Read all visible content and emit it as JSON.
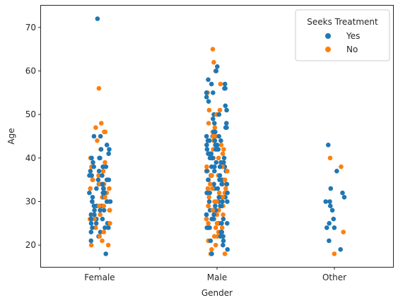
{
  "chart_data": {
    "type": "scatter",
    "subtype": "strip",
    "xlabel": "Gender",
    "ylabel": "Age",
    "categories": [
      "Female",
      "Male",
      "Other"
    ],
    "ylim": [
      15,
      75
    ],
    "yticks": [
      20,
      30,
      40,
      50,
      60,
      70
    ],
    "grid": false,
    "legend": {
      "title": "Seeks Treatment",
      "placement": "top-right",
      "entries": [
        {
          "name": "Yes",
          "color": "#1f77b4"
        },
        {
          "name": "No",
          "color": "#ff7f0e"
        }
      ]
    },
    "series": [
      {
        "name": "Yes",
        "color": "#1f77b4",
        "points": [
          [
            "Female",
            72
          ],
          [
            "Female",
            45
          ],
          [
            "Female",
            45
          ],
          [
            "Female",
            42
          ],
          [
            "Female",
            42
          ],
          [
            "Female",
            41
          ],
          [
            "Female",
            40
          ],
          [
            "Female",
            40
          ],
          [
            "Female",
            39
          ],
          [
            "Female",
            38
          ],
          [
            "Female",
            38
          ],
          [
            "Female",
            37
          ],
          [
            "Female",
            37
          ],
          [
            "Female",
            36
          ],
          [
            "Female",
            36
          ],
          [
            "Female",
            35
          ],
          [
            "Female",
            35
          ],
          [
            "Female",
            34
          ],
          [
            "Female",
            34
          ],
          [
            "Female",
            33
          ],
          [
            "Female",
            33
          ],
          [
            "Female",
            32
          ],
          [
            "Female",
            32
          ],
          [
            "Female",
            31
          ],
          [
            "Female",
            31
          ],
          [
            "Female",
            30
          ],
          [
            "Female",
            30
          ],
          [
            "Female",
            29
          ],
          [
            "Female",
            29
          ],
          [
            "Female",
            28
          ],
          [
            "Female",
            28
          ],
          [
            "Female",
            27
          ],
          [
            "Female",
            27
          ],
          [
            "Female",
            26
          ],
          [
            "Female",
            26
          ],
          [
            "Female",
            25
          ],
          [
            "Female",
            25
          ],
          [
            "Female",
            24
          ],
          [
            "Female",
            24
          ],
          [
            "Female",
            23
          ],
          [
            "Female",
            23
          ],
          [
            "Female",
            22
          ],
          [
            "Female",
            21
          ],
          [
            "Female",
            18
          ],
          [
            "Female",
            43
          ],
          [
            "Female",
            40
          ],
          [
            "Female",
            38
          ],
          [
            "Female",
            36
          ],
          [
            "Female",
            34
          ],
          [
            "Female",
            32
          ],
          [
            "Female",
            30
          ],
          [
            "Female",
            28
          ],
          [
            "Female",
            26
          ],
          [
            "Female",
            24
          ],
          [
            "Female",
            33
          ],
          [
            "Female",
            29
          ],
          [
            "Female",
            27
          ],
          [
            "Female",
            35
          ],
          [
            "Female",
            31
          ],
          [
            "Female",
            25
          ],
          [
            "Male",
            61
          ],
          [
            "Male",
            60
          ],
          [
            "Male",
            60
          ],
          [
            "Male",
            58
          ],
          [
            "Male",
            57
          ],
          [
            "Male",
            57
          ],
          [
            "Male",
            56
          ],
          [
            "Male",
            56
          ],
          [
            "Male",
            55
          ],
          [
            "Male",
            55
          ],
          [
            "Male",
            54
          ],
          [
            "Male",
            53
          ],
          [
            "Male",
            52
          ],
          [
            "Male",
            51
          ],
          [
            "Male",
            50
          ],
          [
            "Male",
            50
          ],
          [
            "Male",
            49
          ],
          [
            "Male",
            48
          ],
          [
            "Male",
            48
          ],
          [
            "Male",
            47
          ],
          [
            "Male",
            47
          ],
          [
            "Male",
            46
          ],
          [
            "Male",
            46
          ],
          [
            "Male",
            45
          ],
          [
            "Male",
            45
          ],
          [
            "Male",
            45
          ],
          [
            "Male",
            44
          ],
          [
            "Male",
            44
          ],
          [
            "Male",
            44
          ],
          [
            "Male",
            43
          ],
          [
            "Male",
            43
          ],
          [
            "Male",
            43
          ],
          [
            "Male",
            42
          ],
          [
            "Male",
            42
          ],
          [
            "Male",
            42
          ],
          [
            "Male",
            41
          ],
          [
            "Male",
            41
          ],
          [
            "Male",
            41
          ],
          [
            "Male",
            40
          ],
          [
            "Male",
            40
          ],
          [
            "Male",
            40
          ],
          [
            "Male",
            39
          ],
          [
            "Male",
            39
          ],
          [
            "Male",
            39
          ],
          [
            "Male",
            38
          ],
          [
            "Male",
            38
          ],
          [
            "Male",
            38
          ],
          [
            "Male",
            37
          ],
          [
            "Male",
            37
          ],
          [
            "Male",
            37
          ],
          [
            "Male",
            36
          ],
          [
            "Male",
            36
          ],
          [
            "Male",
            36
          ],
          [
            "Male",
            35
          ],
          [
            "Male",
            35
          ],
          [
            "Male",
            35
          ],
          [
            "Male",
            34
          ],
          [
            "Male",
            34
          ],
          [
            "Male",
            34
          ],
          [
            "Male",
            33
          ],
          [
            "Male",
            33
          ],
          [
            "Male",
            33
          ],
          [
            "Male",
            32
          ],
          [
            "Male",
            32
          ],
          [
            "Male",
            32
          ],
          [
            "Male",
            31
          ],
          [
            "Male",
            31
          ],
          [
            "Male",
            31
          ],
          [
            "Male",
            30
          ],
          [
            "Male",
            30
          ],
          [
            "Male",
            30
          ],
          [
            "Male",
            29
          ],
          [
            "Male",
            29
          ],
          [
            "Male",
            29
          ],
          [
            "Male",
            28
          ],
          [
            "Male",
            28
          ],
          [
            "Male",
            28
          ],
          [
            "Male",
            27
          ],
          [
            "Male",
            27
          ],
          [
            "Male",
            27
          ],
          [
            "Male",
            26
          ],
          [
            "Male",
            26
          ],
          [
            "Male",
            26
          ],
          [
            "Male",
            25
          ],
          [
            "Male",
            25
          ],
          [
            "Male",
            25
          ],
          [
            "Male",
            24
          ],
          [
            "Male",
            24
          ],
          [
            "Male",
            24
          ],
          [
            "Male",
            23
          ],
          [
            "Male",
            23
          ],
          [
            "Male",
            22
          ],
          [
            "Male",
            22
          ],
          [
            "Male",
            21
          ],
          [
            "Male",
            21
          ],
          [
            "Male",
            20
          ],
          [
            "Male",
            19
          ],
          [
            "Male",
            18
          ],
          [
            "Male",
            36
          ],
          [
            "Male",
            34
          ],
          [
            "Male",
            32
          ],
          [
            "Male",
            30
          ],
          [
            "Male",
            28
          ],
          [
            "Male",
            38
          ],
          [
            "Male",
            40
          ],
          [
            "Male",
            42
          ],
          [
            "Male",
            26
          ],
          [
            "Male",
            44
          ],
          [
            "Other",
            43
          ],
          [
            "Other",
            37
          ],
          [
            "Other",
            33
          ],
          [
            "Other",
            32
          ],
          [
            "Other",
            31
          ],
          [
            "Other",
            30
          ],
          [
            "Other",
            30
          ],
          [
            "Other",
            29
          ],
          [
            "Other",
            28
          ],
          [
            "Other",
            26
          ],
          [
            "Other",
            25
          ],
          [
            "Other",
            24
          ],
          [
            "Other",
            24
          ],
          [
            "Other",
            21
          ],
          [
            "Other",
            19
          ]
        ]
      },
      {
        "name": "No",
        "color": "#ff7f0e",
        "points": [
          [
            "Female",
            56
          ],
          [
            "Female",
            48
          ],
          [
            "Female",
            47
          ],
          [
            "Female",
            46
          ],
          [
            "Female",
            46
          ],
          [
            "Female",
            44
          ],
          [
            "Female",
            42
          ],
          [
            "Female",
            40
          ],
          [
            "Female",
            39
          ],
          [
            "Female",
            38
          ],
          [
            "Female",
            37
          ],
          [
            "Female",
            36
          ],
          [
            "Female",
            35
          ],
          [
            "Female",
            35
          ],
          [
            "Female",
            34
          ],
          [
            "Female",
            33
          ],
          [
            "Female",
            33
          ],
          [
            "Female",
            32
          ],
          [
            "Female",
            32
          ],
          [
            "Female",
            31
          ],
          [
            "Female",
            30
          ],
          [
            "Female",
            30
          ],
          [
            "Female",
            29
          ],
          [
            "Female",
            28
          ],
          [
            "Female",
            28
          ],
          [
            "Female",
            27
          ],
          [
            "Female",
            27
          ],
          [
            "Female",
            26
          ],
          [
            "Female",
            25
          ],
          [
            "Female",
            24
          ],
          [
            "Female",
            23
          ],
          [
            "Female",
            22
          ],
          [
            "Female",
            21
          ],
          [
            "Female",
            20
          ],
          [
            "Female",
            20
          ],
          [
            "Female",
            36
          ],
          [
            "Female",
            34
          ],
          [
            "Female",
            31
          ],
          [
            "Female",
            29
          ],
          [
            "Female",
            26
          ],
          [
            "Male",
            65
          ],
          [
            "Male",
            62
          ],
          [
            "Male",
            60
          ],
          [
            "Male",
            57
          ],
          [
            "Male",
            55
          ],
          [
            "Male",
            51
          ],
          [
            "Male",
            51
          ],
          [
            "Male",
            50
          ],
          [
            "Male",
            48
          ],
          [
            "Male",
            47
          ],
          [
            "Male",
            46
          ],
          [
            "Male",
            45
          ],
          [
            "Male",
            45
          ],
          [
            "Male",
            44
          ],
          [
            "Male",
            43
          ],
          [
            "Male",
            42
          ],
          [
            "Male",
            42
          ],
          [
            "Male",
            41
          ],
          [
            "Male",
            40
          ],
          [
            "Male",
            40
          ],
          [
            "Male",
            39
          ],
          [
            "Male",
            38
          ],
          [
            "Male",
            38
          ],
          [
            "Male",
            37
          ],
          [
            "Male",
            37
          ],
          [
            "Male",
            36
          ],
          [
            "Male",
            36
          ],
          [
            "Male",
            35
          ],
          [
            "Male",
            35
          ],
          [
            "Male",
            34
          ],
          [
            "Male",
            34
          ],
          [
            "Male",
            33
          ],
          [
            "Male",
            33
          ],
          [
            "Male",
            32
          ],
          [
            "Male",
            32
          ],
          [
            "Male",
            31
          ],
          [
            "Male",
            31
          ],
          [
            "Male",
            30
          ],
          [
            "Male",
            30
          ],
          [
            "Male",
            29
          ],
          [
            "Male",
            29
          ],
          [
            "Male",
            28
          ],
          [
            "Male",
            28
          ],
          [
            "Male",
            27
          ],
          [
            "Male",
            27
          ],
          [
            "Male",
            26
          ],
          [
            "Male",
            26
          ],
          [
            "Male",
            25
          ],
          [
            "Male",
            25
          ],
          [
            "Male",
            24
          ],
          [
            "Male",
            24
          ],
          [
            "Male",
            23
          ],
          [
            "Male",
            23
          ],
          [
            "Male",
            22
          ],
          [
            "Male",
            22
          ],
          [
            "Male",
            21
          ],
          [
            "Male",
            20
          ],
          [
            "Male",
            19
          ],
          [
            "Male",
            18
          ],
          [
            "Male",
            18
          ],
          [
            "Male",
            33
          ],
          [
            "Male",
            37
          ],
          [
            "Male",
            41
          ],
          [
            "Male",
            29
          ],
          [
            "Male",
            25
          ],
          [
            "Male",
            43
          ],
          [
            "Other",
            40
          ],
          [
            "Other",
            38
          ],
          [
            "Other",
            23
          ],
          [
            "Other",
            18
          ]
        ]
      }
    ]
  }
}
